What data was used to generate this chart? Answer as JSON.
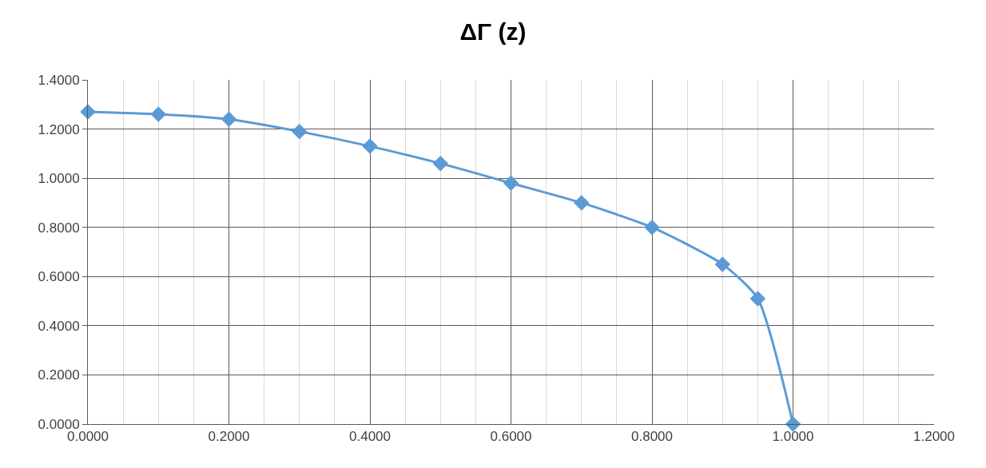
{
  "chart_data": {
    "type": "line",
    "title": "ΔΓ (z)",
    "x": [
      0,
      0.1,
      0.2,
      0.3,
      0.4,
      0.5,
      0.6,
      0.7,
      0.8,
      0.9,
      0.95,
      1.0
    ],
    "series": [
      {
        "color": "#5b9bd5",
        "values": [
          1.27,
          1.26,
          1.24,
          1.19,
          1.13,
          1.06,
          0.98,
          0.9,
          0.8,
          0.65,
          0.51,
          0.0
        ]
      }
    ],
    "xlim": [
      0,
      1.2
    ],
    "xticks": [
      {
        "value": 0,
        "label": "0.0000"
      },
      {
        "value": 0.2,
        "label": "0.2000"
      },
      {
        "value": 0.4,
        "label": "0.4000"
      },
      {
        "value": 0.6,
        "label": "0.6000"
      },
      {
        "value": 0.8,
        "label": "0.8000"
      },
      {
        "value": 1.0,
        "label": "1.0000"
      },
      {
        "value": 1.2,
        "label": "1.2000"
      }
    ],
    "ylim": [
      0,
      1.4
    ],
    "yticks": [
      {
        "value": 0,
        "label": "0.0000"
      },
      {
        "value": 0.2,
        "label": "0.2000"
      },
      {
        "value": 0.4,
        "label": "0.4000"
      },
      {
        "value": 0.6,
        "label": "0.6000"
      },
      {
        "value": 0.8,
        "label": "0.8000"
      },
      {
        "value": 1.0,
        "label": "1.0000"
      },
      {
        "value": 1.2,
        "label": "1.2000"
      },
      {
        "value": 1.4,
        "label": "1.4000"
      }
    ],
    "grid": true,
    "marker": "diamond",
    "line_style": "solid"
  }
}
